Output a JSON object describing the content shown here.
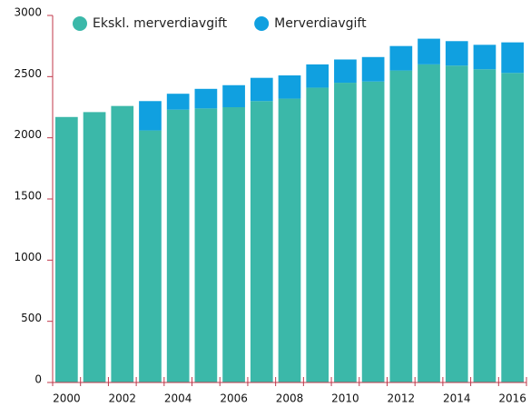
{
  "chart_data": {
    "type": "stacked_bar",
    "categories": [
      "2000",
      null,
      "2002",
      null,
      "2004",
      null,
      "2006",
      null,
      "2008",
      null,
      "2010",
      null,
      "2012",
      null,
      "2014",
      null,
      "2016"
    ],
    "series": [
      {
        "name": "Ekskl. merverdiavgift",
        "color": "#3bb8a9",
        "values": [
          2170,
          2210,
          2260,
          2060,
          2230,
          2240,
          2250,
          2300,
          2320,
          2410,
          2450,
          2460,
          2550,
          2600,
          2590,
          2560,
          2530
        ]
      },
      {
        "name": "Merverdiavgift",
        "color": "#10a0e0",
        "values": [
          0,
          0,
          0,
          240,
          130,
          160,
          180,
          190,
          190,
          190,
          190,
          200,
          200,
          210,
          200,
          200,
          250
        ]
      }
    ],
    "ylim": [
      0,
      3000
    ],
    "yticks": [
      0,
      500,
      1000,
      1500,
      2000,
      2500,
      3000
    ],
    "axis_color": "#c0374a"
  }
}
